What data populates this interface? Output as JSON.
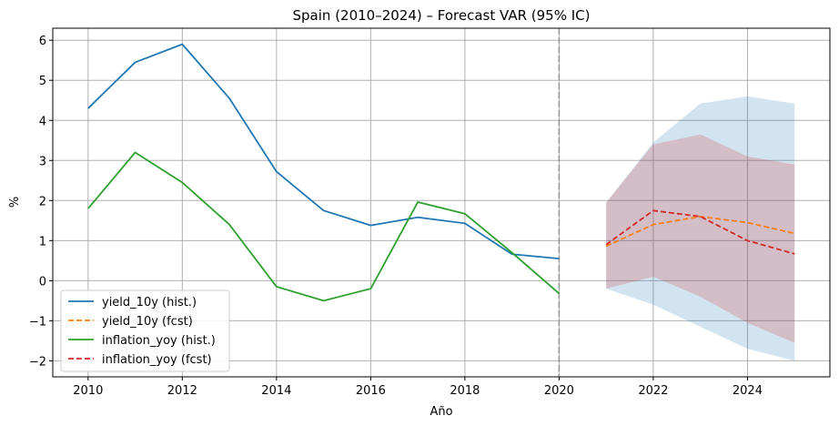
{
  "chart_data": {
    "type": "line",
    "title": "Spain (2010–2024) – Forecast VAR (95% IC)",
    "xlabel": "Año",
    "ylabel": "%",
    "xlim": [
      2009.25,
      2025.75
    ],
    "ylim": [
      -2.4,
      6.3
    ],
    "x_ticks": [
      2010,
      2012,
      2014,
      2016,
      2018,
      2020,
      2022,
      2024
    ],
    "x_tick_labels": [
      "2010",
      "2012",
      "2014",
      "2016",
      "2018",
      "2020",
      "2022",
      "2024"
    ],
    "y_ticks": [
      -2,
      -1,
      0,
      1,
      2,
      3,
      4,
      5,
      6
    ],
    "y_tick_labels": [
      "−2",
      "−1",
      "0",
      "1",
      "2",
      "3",
      "4",
      "5",
      "6"
    ],
    "grid": true,
    "legend_position": "lower-left",
    "forecast_start_line": 2020,
    "series": [
      {
        "name": "yield_10y (hist.)",
        "color": "#1f77b4",
        "style": "solid",
        "x": [
          2010,
          2011,
          2012,
          2013,
          2014,
          2015,
          2016,
          2017,
          2018,
          2019,
          2020
        ],
        "values": [
          4.3,
          5.45,
          5.9,
          4.55,
          2.72,
          1.75,
          1.38,
          1.58,
          1.43,
          0.66,
          0.55
        ]
      },
      {
        "name": "yield_10y (fcst)",
        "color": "#ff7f0e",
        "style": "dashed",
        "x": [
          2021,
          2022,
          2023,
          2024,
          2025
        ],
        "values": [
          0.86,
          1.4,
          1.6,
          1.45,
          1.18
        ]
      },
      {
        "name": "inflation_yoy (hist.)",
        "color": "#2ca02c",
        "style": "solid",
        "x": [
          2010,
          2011,
          2012,
          2013,
          2014,
          2015,
          2016,
          2017,
          2018,
          2019,
          2020
        ],
        "values": [
          1.8,
          3.2,
          2.45,
          1.4,
          -0.15,
          -0.5,
          -0.2,
          1.96,
          1.67,
          0.7,
          -0.32
        ]
      },
      {
        "name": "inflation_yoy (fcst)",
        "color": "#d62728",
        "style": "dashed",
        "x": [
          2021,
          2022,
          2023,
          2024,
          2025
        ],
        "values": [
          0.9,
          1.75,
          1.6,
          1.0,
          0.67
        ]
      }
    ],
    "confidence_bands": [
      {
        "of": "yield_10y (fcst)",
        "color": "#1f77b4",
        "opacity": 0.2,
        "x": [
          2021,
          2022,
          2023,
          2024,
          2025
        ],
        "lower": [
          -0.2,
          -0.6,
          -1.15,
          -1.7,
          -2.0
        ],
        "upper": [
          1.95,
          3.45,
          4.42,
          4.6,
          4.42
        ]
      },
      {
        "of": "inflation_yoy (fcst)",
        "color": "#d62728",
        "opacity": 0.2,
        "x": [
          2021,
          2022,
          2023,
          2024,
          2025
        ],
        "lower": [
          -0.2,
          0.1,
          -0.4,
          -1.05,
          -1.55
        ],
        "upper": [
          1.95,
          3.4,
          3.65,
          3.1,
          2.9
        ]
      }
    ]
  }
}
